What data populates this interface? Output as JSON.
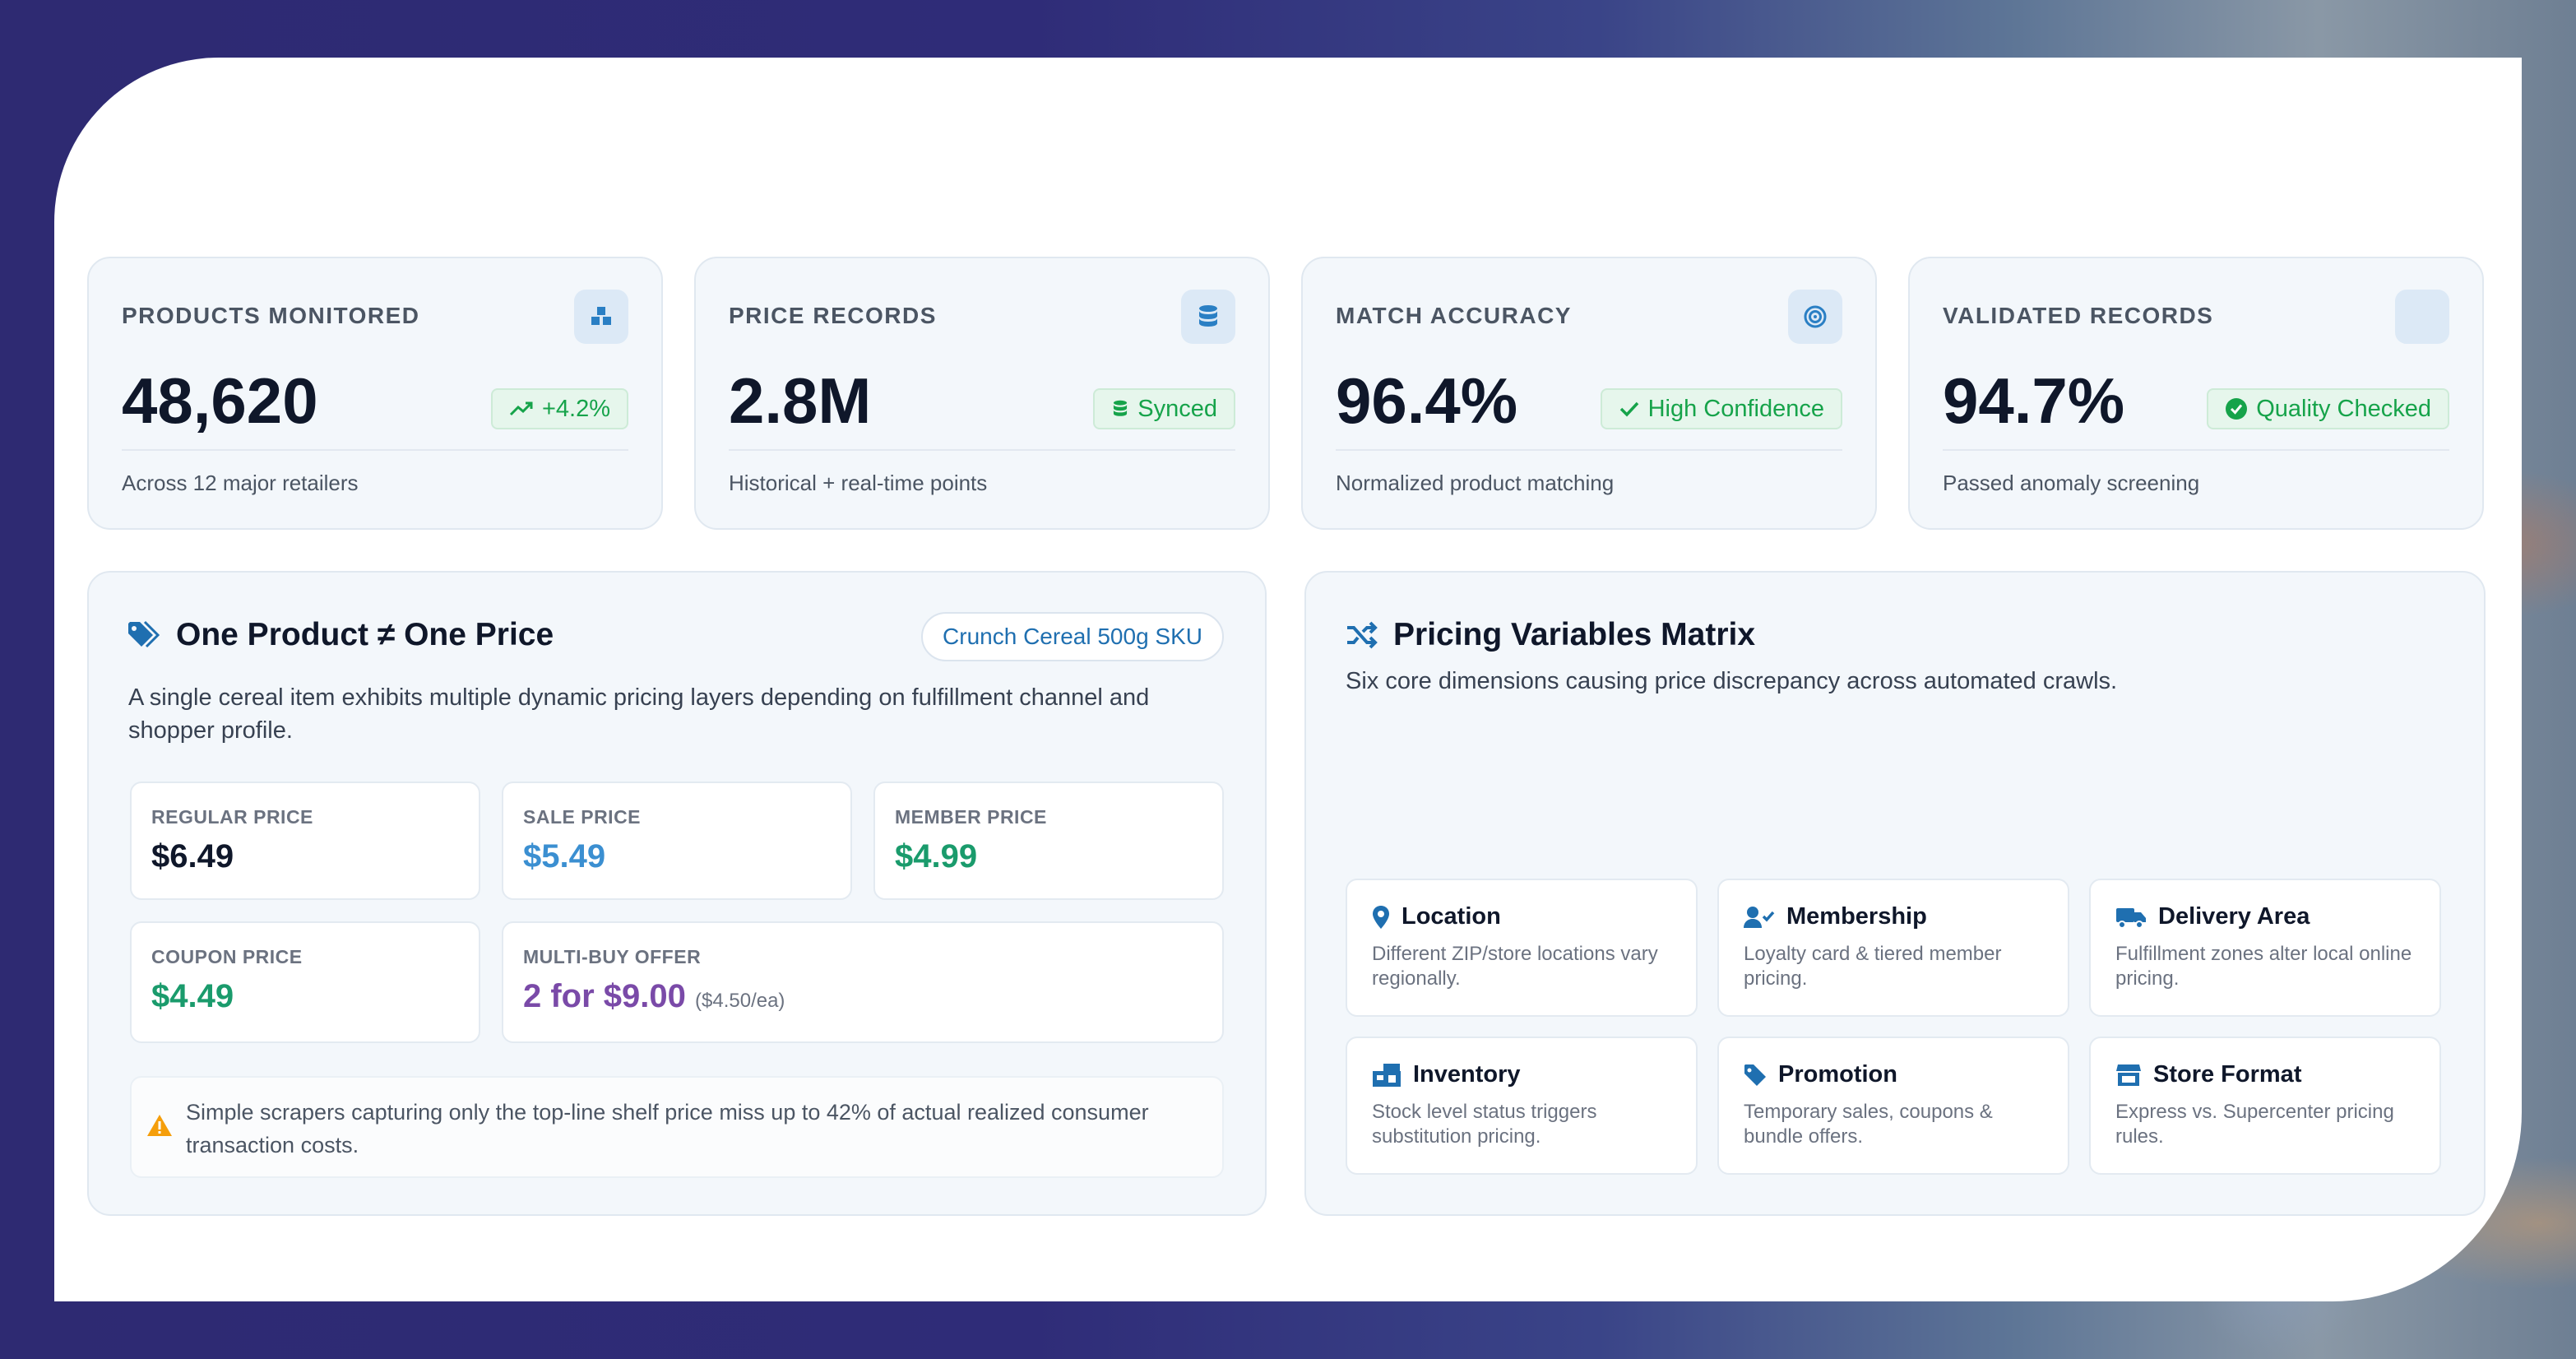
{
  "stats": [
    {
      "label": "PRODUCTS MONITORED",
      "value": "48,620",
      "badge": "+4.2%",
      "sub": "Across 12 major retailers",
      "icon": "boxes-icon",
      "badge_icon": "trend-up-icon"
    },
    {
      "label": "PRICE RECORDS",
      "value": "2.8M",
      "badge": "Synced",
      "sub": "Historical + real-time points",
      "icon": "database-icon",
      "badge_icon": "database-icon"
    },
    {
      "label": "MATCH ACCURACY",
      "value": "96.4%",
      "badge": "High Confidence",
      "sub": "Normalized product matching",
      "icon": "target-icon",
      "badge_icon": "check-icon"
    },
    {
      "label": "VALIDATED RECORDS",
      "value": "94.7%",
      "badge": "Quality Checked",
      "sub": "Passed anomaly screening",
      "icon": "blank-icon",
      "badge_icon": "check-circle-icon"
    }
  ],
  "one_product": {
    "title": "One Product ≠ One Price",
    "sku": "Crunch Cereal 500g SKU",
    "description": "A single cereal item exhibits multiple dynamic pricing layers depending on fulfillment channel and shopper profile.",
    "prices": {
      "regular": {
        "label": "REGULAR PRICE",
        "value": "$6.49"
      },
      "sale": {
        "label": "SALE PRICE",
        "value": "$5.49"
      },
      "member": {
        "label": "MEMBER PRICE",
        "value": "$4.99"
      },
      "coupon": {
        "label": "COUPON PRICE",
        "value": "$4.49"
      },
      "multibuy": {
        "label": "MULTI-BUY OFFER",
        "value": "2 for $9.00",
        "note": "($4.50/ea)"
      }
    },
    "warning": "Simple scrapers capturing only the top-line shelf price miss up to 42% of actual realized consumer transaction costs."
  },
  "matrix": {
    "title": "Pricing Variables Matrix",
    "subtitle": "Six core dimensions causing price discrepancy across automated crawls.",
    "items": [
      {
        "name": "Location",
        "desc": "Different ZIP/store locations vary regionally.",
        "icon": "map-pin-icon"
      },
      {
        "name": "Membership",
        "desc": "Loyalty card & tiered member pricing.",
        "icon": "user-check-icon"
      },
      {
        "name": "Delivery Area",
        "desc": "Fulfillment zones alter local online pricing.",
        "icon": "truck-icon"
      },
      {
        "name": "Inventory",
        "desc": "Stock level status triggers substitution pricing.",
        "icon": "warehouse-icon"
      },
      {
        "name": "Promotion",
        "desc": "Temporary sales, coupons & bundle offers.",
        "icon": "tag-icon"
      },
      {
        "name": "Store Format",
        "desc": "Express vs. Supercenter pricing rules.",
        "icon": "store-icon"
      }
    ]
  },
  "colors": {
    "accent_blue": "#1f6fb0",
    "sale_blue": "#3b8fd1",
    "member_green": "#1a9b6c",
    "multibuy_purple": "#7a4aa8",
    "badge_green": "#16a34a",
    "warn_orange": "#f59e0b"
  }
}
